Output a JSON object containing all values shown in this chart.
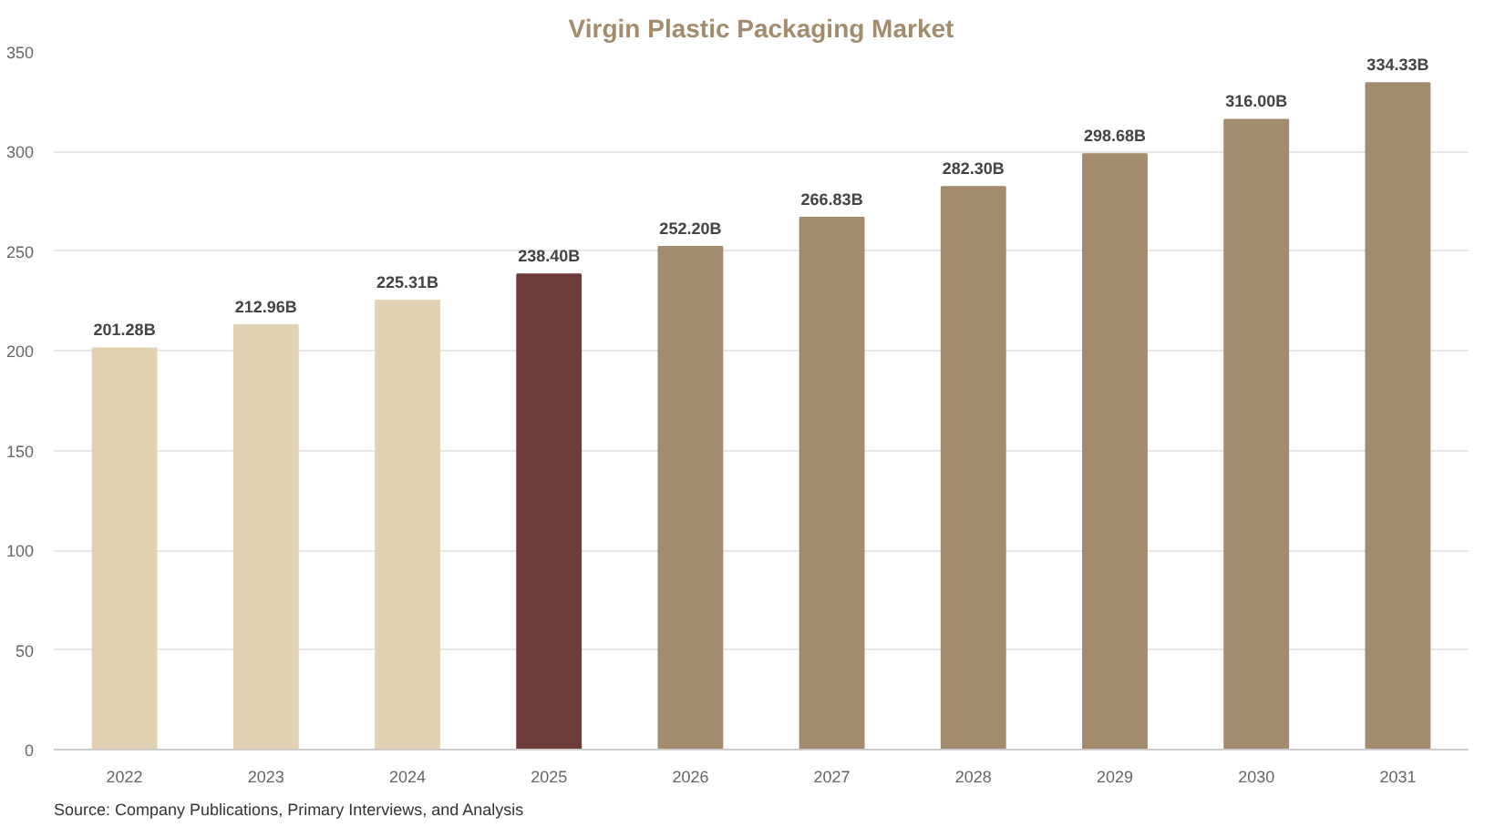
{
  "chart_data": {
    "type": "bar",
    "title": "Virgin Plastic Packaging Market",
    "categories": [
      "2022",
      "2023",
      "2024",
      "2025",
      "2026",
      "2027",
      "2028",
      "2029",
      "2030",
      "2031"
    ],
    "values": [
      201.28,
      212.96,
      225.31,
      238.4,
      252.2,
      266.83,
      282.3,
      298.68,
      316.0,
      334.33
    ],
    "colors": [
      "#e3d1b3",
      "#e3d1b3",
      "#e3d1b3",
      "#6e3b3b",
      "#a38c6e",
      "#a38c6e",
      "#a38c6e",
      "#a38c6e",
      "#a38c6e",
      "#a38c6e"
    ],
    "value_labels": [
      "201.28B",
      "212.96B",
      "225.31B",
      "238.40B",
      "252.20B",
      "266.83B",
      "282.30B",
      "298.68B",
      "316.00B",
      "334.33B"
    ],
    "ylim": [
      0,
      350
    ],
    "yticks": [
      0,
      50,
      100,
      150,
      200,
      250,
      300,
      350
    ],
    "grid": "y",
    "annotations": [
      "Source: Company Publications, Primary Interviews, and Analysis"
    ]
  }
}
